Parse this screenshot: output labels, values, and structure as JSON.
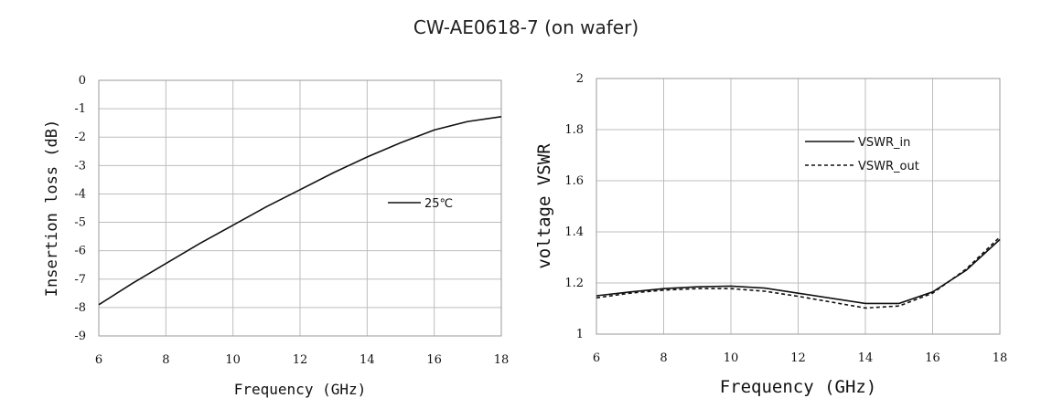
{
  "title": "CW-AE0618-7  (on wafer)",
  "chart_data": [
    {
      "type": "line",
      "xlabel": "Frequency (GHz)",
      "ylabel": "Insertion loss (dB)",
      "xlim": [
        6,
        18
      ],
      "ylim": [
        -9,
        0
      ],
      "xticks": [
        "6",
        "8",
        "10",
        "12",
        "14",
        "16",
        "18"
      ],
      "yticks": [
        "0",
        "-1",
        "-2",
        "-3",
        "-4",
        "-5",
        "-6",
        "-7",
        "-8",
        "-9"
      ],
      "grid": true,
      "legend_position": "center-right",
      "series": [
        {
          "name": "25℃",
          "style": "solid",
          "x": [
            6,
            7,
            8,
            9,
            10,
            11,
            12,
            13,
            14,
            15,
            16,
            17,
            18
          ],
          "y": [
            -7.9,
            -7.15,
            -6.45,
            -5.75,
            -5.1,
            -4.45,
            -3.85,
            -3.25,
            -2.7,
            -2.2,
            -1.75,
            -1.45,
            -1.28
          ]
        }
      ]
    },
    {
      "type": "line",
      "xlabel": "Frequency (GHz)",
      "ylabel": "voltage VSWR",
      "xlim": [
        6,
        18
      ],
      "ylim": [
        1,
        2
      ],
      "xticks": [
        "6",
        "8",
        "10",
        "12",
        "14",
        "16",
        "18"
      ],
      "yticks": [
        "2",
        "1.8",
        "1.6",
        "1.4",
        "1.2",
        "1"
      ],
      "grid": true,
      "legend_position": "top-right",
      "series": [
        {
          "name": "VSWR_in",
          "style": "solid",
          "x": [
            6,
            7,
            8,
            9,
            10,
            11,
            12,
            13,
            14,
            15,
            16,
            17,
            18
          ],
          "y": [
            1.15,
            1.165,
            1.178,
            1.185,
            1.188,
            1.18,
            1.16,
            1.14,
            1.12,
            1.12,
            1.165,
            1.25,
            1.37
          ]
        },
        {
          "name": "VSWR_out",
          "style": "dashed",
          "x": [
            6,
            7,
            8,
            9,
            10,
            11,
            12,
            13,
            14,
            15,
            16,
            17,
            18
          ],
          "y": [
            1.142,
            1.16,
            1.172,
            1.178,
            1.178,
            1.168,
            1.148,
            1.125,
            1.102,
            1.11,
            1.16,
            1.255,
            1.38
          ]
        }
      ]
    }
  ]
}
